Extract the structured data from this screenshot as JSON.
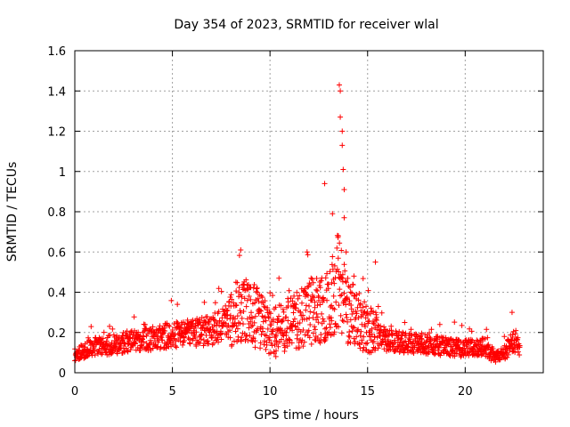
{
  "chart_data": {
    "type": "scatter",
    "title": "Day 354 of 2023, SRMTID for receiver wlal",
    "xlabel": "GPS time / hours",
    "ylabel": "SRMTID / TECUs",
    "xlim": [
      0,
      24
    ],
    "ylim": [
      0,
      1.6
    ],
    "xticks": [
      0,
      5,
      10,
      15,
      20
    ],
    "xtick_labels": [
      "0",
      "5",
      "10",
      "15",
      "20"
    ],
    "yticks": [
      0,
      0.2,
      0.4,
      0.6,
      0.8,
      1.0,
      1.2,
      1.4,
      1.6
    ],
    "ytick_labels": [
      "0",
      "0.2",
      "0.4",
      "0.6",
      "0.8",
      "1",
      "1.2",
      "1.4",
      "1.6"
    ],
    "grid": true,
    "marker": "+",
    "color": "#ff0000",
    "x_range_of_data": [
      0,
      22.8
    ],
    "trend": [
      {
        "x": 0.0,
        "y": 0.09
      },
      {
        "x": 1.0,
        "y": 0.13
      },
      {
        "x": 2.0,
        "y": 0.14
      },
      {
        "x": 3.0,
        "y": 0.16
      },
      {
        "x": 4.0,
        "y": 0.17
      },
      {
        "x": 5.0,
        "y": 0.19
      },
      {
        "x": 6.0,
        "y": 0.2
      },
      {
        "x": 7.0,
        "y": 0.21
      },
      {
        "x": 7.5,
        "y": 0.24
      },
      {
        "x": 8.0,
        "y": 0.27
      },
      {
        "x": 8.5,
        "y": 0.3
      },
      {
        "x": 9.0,
        "y": 0.3
      },
      {
        "x": 9.5,
        "y": 0.26
      },
      {
        "x": 10.0,
        "y": 0.2
      },
      {
        "x": 11.0,
        "y": 0.24
      },
      {
        "x": 12.0,
        "y": 0.3
      },
      {
        "x": 13.0,
        "y": 0.35
      },
      {
        "x": 13.5,
        "y": 0.45
      },
      {
        "x": 14.0,
        "y": 0.32
      },
      {
        "x": 15.0,
        "y": 0.22
      },
      {
        "x": 16.0,
        "y": 0.16
      },
      {
        "x": 17.0,
        "y": 0.15
      },
      {
        "x": 18.0,
        "y": 0.14
      },
      {
        "x": 19.0,
        "y": 0.13
      },
      {
        "x": 20.0,
        "y": 0.12
      },
      {
        "x": 21.0,
        "y": 0.13
      },
      {
        "x": 21.5,
        "y": 0.07
      },
      {
        "x": 22.0,
        "y": 0.1
      },
      {
        "x": 22.5,
        "y": 0.16
      },
      {
        "x": 22.8,
        "y": 0.12
      }
    ],
    "notable_points": [
      {
        "x": 8.5,
        "y": 0.61
      },
      {
        "x": 11.9,
        "y": 0.6
      },
      {
        "x": 12.8,
        "y": 0.94
      },
      {
        "x": 13.2,
        "y": 0.79
      },
      {
        "x": 13.55,
        "y": 1.43
      },
      {
        "x": 13.6,
        "y": 1.4
      },
      {
        "x": 13.6,
        "y": 1.27
      },
      {
        "x": 13.7,
        "y": 1.2
      },
      {
        "x": 13.7,
        "y": 1.13
      },
      {
        "x": 13.75,
        "y": 1.01
      },
      {
        "x": 13.8,
        "y": 0.91
      },
      {
        "x": 13.8,
        "y": 0.77
      },
      {
        "x": 13.5,
        "y": 0.68
      },
      {
        "x": 13.9,
        "y": 0.6
      },
      {
        "x": 15.4,
        "y": 0.55
      },
      {
        "x": 22.4,
        "y": 0.3
      },
      {
        "x": 18.7,
        "y": 0.24
      },
      {
        "x": 10.3,
        "y": 0.08
      },
      {
        "x": 16.9,
        "y": 0.25
      },
      {
        "x": 14.3,
        "y": 0.48
      }
    ]
  }
}
